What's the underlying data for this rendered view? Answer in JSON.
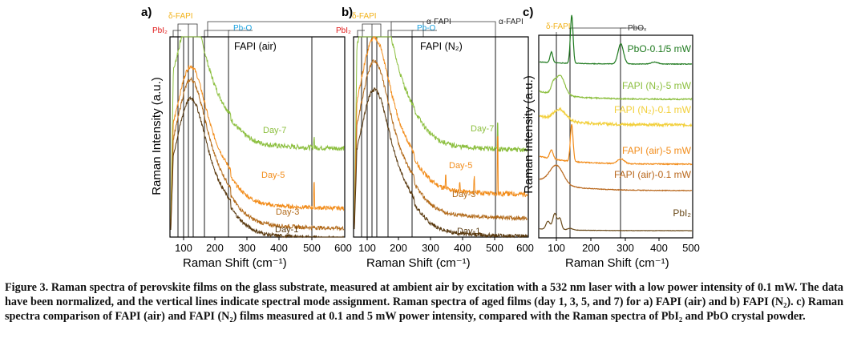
{
  "colors": {
    "day1": "#5a3a10",
    "day3": "#b26a1a",
    "day5": "#f28c1a",
    "day7": "#8cbf3f",
    "pbi2": "#e01a1a",
    "dfapi": "#f2b21a",
    "pbo": "#1aa2e0",
    "afapi": "#222222",
    "c_pbo": "#1f7a1f",
    "c_n2_5": "#8cbf3f",
    "c_n2_01": "#f2cf3a",
    "c_air5": "#f28c1a",
    "c_air01": "#b8661a",
    "c_pbi2": "#6a4a1a"
  },
  "panels": [
    {
      "letter": "a)",
      "title": "FAPI (air)",
      "ylabel": "Raman Intensity (a.u.)",
      "xlabel": "Raman Shift (cm⁻¹)",
      "xticks": [
        "100",
        "200",
        "300",
        "400",
        "500",
        "600"
      ],
      "assign": {
        "pbi2": "PbI₂",
        "dfapi": "δ-FAPI",
        "pbo": "Pb-O",
        "afapi": "α-FAPI"
      },
      "series_labels": [
        "Day-7",
        "Day-5",
        "Day-3",
        "Day-1"
      ]
    },
    {
      "letter": "b)",
      "title": "FAPI (N₂)",
      "ylabel": "",
      "xlabel": "Raman Shift (cm⁻¹)",
      "xticks": [
        "100",
        "200",
        "300",
        "400",
        "500",
        "600"
      ],
      "assign": {
        "pbi2": "PbI₂",
        "dfapi": "δ-FAPI",
        "pbo": "Pb-O",
        "afapi": "α-FAPI"
      },
      "series_labels": [
        "Day-7",
        "Day-5",
        "Day-3",
        "Day-1"
      ]
    },
    {
      "letter": "c)",
      "title": "",
      "ylabel": "Raman Intensity (a.u.)",
      "xlabel": "Raman Shift (cm⁻¹)",
      "xticks": [
        "100",
        "200",
        "300",
        "400",
        "500"
      ],
      "assign": {
        "dfapi": "δ-FAPI",
        "pbox": "PbOₓ"
      },
      "series_labels": [
        "PbO-0.1/5 mW",
        "FAPI (N₂)-5 mW",
        "FAPI (N₂)-0.1 mW",
        "FAPI (air)-5 mW",
        "FAPI (air)-0.1 mW",
        "PbI₂"
      ]
    }
  ],
  "chart_data": [
    {
      "type": "line",
      "title": "FAPI (air)",
      "xlabel": "Raman Shift (cm⁻¹)",
      "ylabel": "Raman Intensity (a.u.)",
      "xlim": [
        50,
        600
      ],
      "assignment_lines": [
        70,
        90,
        105,
        120,
        160,
        240,
        520
      ],
      "series": [
        {
          "name": "Day-7",
          "peak": 110,
          "baseline": 0.62
        },
        {
          "name": "Day-5",
          "peak": 115,
          "baseline": 0.4
        },
        {
          "name": "Day-3",
          "peak": 115,
          "baseline": 0.3
        },
        {
          "name": "Day-1",
          "peak": 110,
          "baseline": 0.2
        }
      ]
    },
    {
      "type": "line",
      "title": "FAPI (N₂)",
      "xlabel": "Raman Shift (cm⁻¹)",
      "xlim": [
        50,
        600
      ],
      "assignment_lines": [
        70,
        90,
        105,
        120,
        160,
        240,
        520
      ],
      "series": [
        {
          "name": "Day-7",
          "peak": 110,
          "baseline": 0.6
        },
        {
          "name": "Day-5",
          "peak": 110,
          "baseline": 0.4
        },
        {
          "name": "Day-3",
          "peak": 110,
          "baseline": 0.3
        },
        {
          "name": "Day-1",
          "peak": 110,
          "baseline": 0.2
        }
      ]
    },
    {
      "type": "line",
      "xlabel": "Raman Shift (cm⁻¹)",
      "ylabel": "Raman Intensity (a.u.)",
      "xlim": [
        50,
        500
      ],
      "assignment_lines": [
        110,
        145,
        290
      ],
      "series": [
        {
          "name": "PbO-0.1/5 mW",
          "peaks": [
            85,
            145,
            290
          ]
        },
        {
          "name": "FAPI (N₂)-5 mW",
          "peaks": [
            110
          ]
        },
        {
          "name": "FAPI (N₂)-0.1 mW",
          "peaks": [
            110
          ]
        },
        {
          "name": "FAPI (air)-5 mW",
          "peaks": [
            85,
            145,
            290
          ]
        },
        {
          "name": "FAPI (air)-0.1 mW",
          "peaks": [
            110
          ]
        },
        {
          "name": "PbI₂",
          "peaks": [
            75,
            95,
            110
          ]
        }
      ]
    }
  ],
  "caption": {
    "lead": "Figure 3.",
    "text": "Raman spectra of perovskite films on the glass substrate, measured at ambient air by excitation with a 532 nm laser with a low power intensity of 0.1 mW. The data have been normalized, and the vertical lines indicate spectral mode assignment. Raman spectra of aged films (day 1, 3, 5, and 7) for a) FAPI (air) and b) FAPI (N₂). c) Raman spectra comparison of FAPI (air) and FAPI (N₂) films measured at 0.1 and 5 mW power intensity, compared with the Raman spectra of PbI₂ and PbO crystal powder."
  }
}
